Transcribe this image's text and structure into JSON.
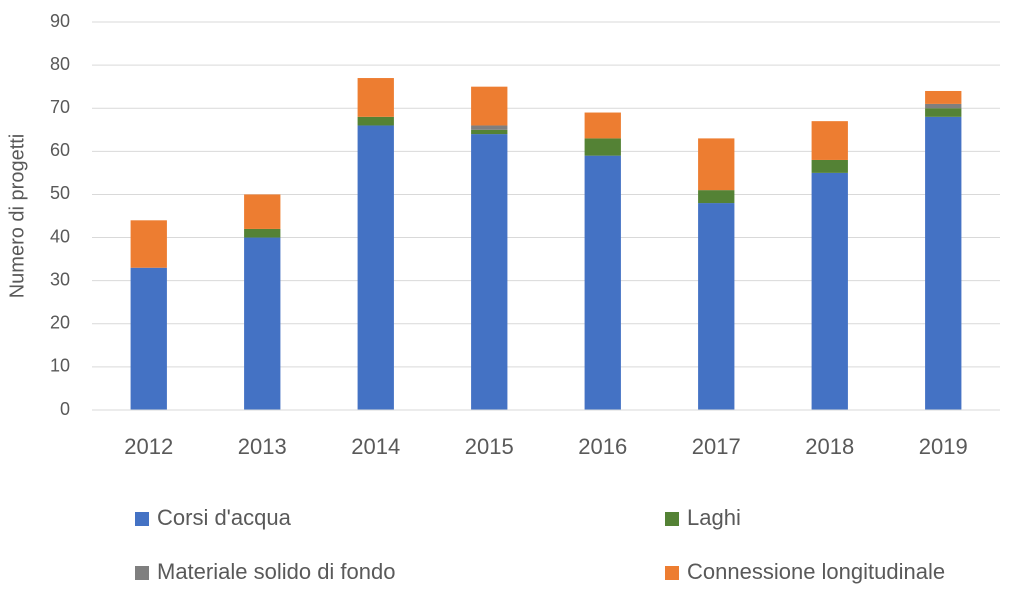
{
  "chart_data": {
    "type": "stacked_bar",
    "y_label": "Numero di progetti",
    "categories": [
      "2012",
      "2013",
      "2014",
      "2015",
      "2016",
      "2017",
      "2018",
      "2019"
    ],
    "series": [
      {
        "name": "Corsi d'acqua",
        "color": "#4472c4",
        "values": [
          33,
          40,
          66,
          64,
          59,
          48,
          55,
          68
        ]
      },
      {
        "name": "Laghi",
        "color": "#548235",
        "values": [
          0,
          2,
          2,
          1,
          4,
          3,
          3,
          2
        ]
      },
      {
        "name": "Materiale solido di fondo",
        "color": "#7f7f7f",
        "values": [
          0,
          0,
          0,
          1,
          0,
          0,
          0,
          1
        ]
      },
      {
        "name": "Connessione longitudinale",
        "color": "#ed7d31",
        "values": [
          11,
          8,
          9,
          9,
          6,
          12,
          9,
          3
        ]
      }
    ],
    "ylim": [
      0,
      90
    ],
    "yticks": [
      0,
      10,
      20,
      30,
      40,
      50,
      60,
      70,
      80,
      90
    ],
    "grid": true,
    "legend": "bottom"
  }
}
